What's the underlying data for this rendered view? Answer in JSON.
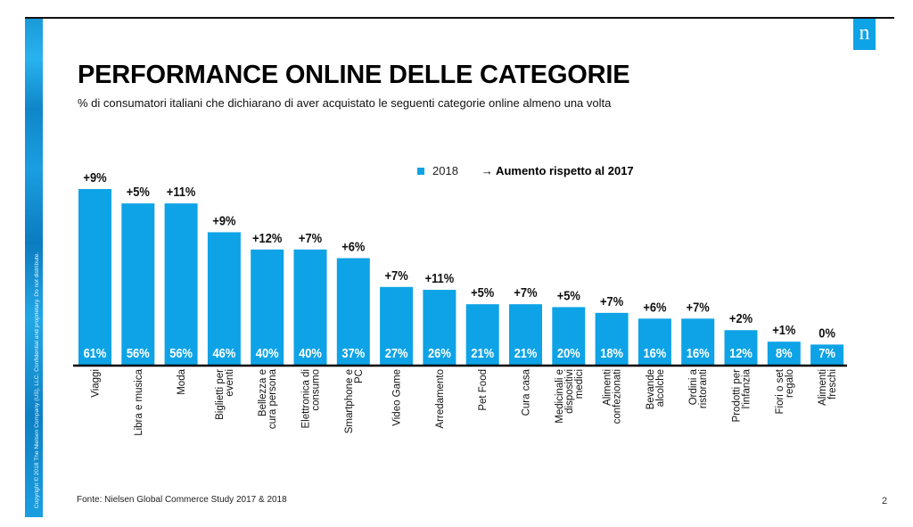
{
  "slide": {
    "title": "PERFORMANCE ONLINE DELLE CATEGORIE",
    "subtitle": "% di consumatori italiani che dichiarano di aver acquistato le seguenti categorie online almeno una volta",
    "logo_letter": "n",
    "side_copyright": "Copyright © 2018 The Nielsen Company (US), LLC. Confidential and proprietary. Do not distribute.",
    "source": "Fonte: Nielsen Global Commerce Study 2017 & 2018",
    "page_number": "2",
    "colors": {
      "bar": "#0ea3e6",
      "logo_bg": "#0ea3e6",
      "bar_label": "#ffffff"
    }
  },
  "legend": {
    "series_label": "2018",
    "note_label": "→ Aumento rispetto al 2017"
  },
  "chart_data": {
    "type": "bar",
    "title": "PERFORMANCE ONLINE DELLE CATEGORIE",
    "xlabel": "",
    "ylabel": "",
    "ylim": [
      0,
      65
    ],
    "grid": false,
    "legend_position": "top-center",
    "categories": [
      "Viaggi",
      "Libra e musica",
      "Moda",
      "Biglietti per eventi",
      "Bellezza e cura persona",
      "Elettronica di consumo",
      "Smartphone e PC",
      "Video Game",
      "Arredamento",
      "Pet Food",
      "Cura casa",
      "Medicinali e dispositivi medici",
      "Alimenti confezionati",
      "Bevande alcolche",
      "Ordini a ristoranti",
      "Prodotti per l'infanzia",
      "Fiori o set regalo",
      "Alimenti freschi"
    ],
    "category_lines": [
      [
        "Viaggi"
      ],
      [
        "Libra e musica"
      ],
      [
        "Moda"
      ],
      [
        "Biglietti per",
        "eventi"
      ],
      [
        "Bellezza e",
        "cura persona"
      ],
      [
        "Elettronica di",
        "consumo"
      ],
      [
        "Smartphone e",
        "PC"
      ],
      [
        "Video Game"
      ],
      [
        "Arredamento"
      ],
      [
        "Pet Food"
      ],
      [
        "Cura casa"
      ],
      [
        "Medicinali e",
        "dispositivi",
        "medici"
      ],
      [
        "Alimenti",
        "confezionati"
      ],
      [
        "Bevande",
        "alcolche"
      ],
      [
        "Ordini a",
        "ristoranti"
      ],
      [
        "Prodotti per",
        "l'infanzia"
      ],
      [
        "Fiori o set",
        "regalo"
      ],
      [
        "Alimenti",
        "freschi"
      ]
    ],
    "series": [
      {
        "name": "2018",
        "values": [
          61,
          56,
          56,
          46,
          40,
          40,
          37,
          27,
          26,
          21,
          21,
          20,
          18,
          16,
          16,
          12,
          8,
          7
        ],
        "value_labels": [
          "61%",
          "56%",
          "56%",
          "46%",
          "40%",
          "40%",
          "37%",
          "27%",
          "26%",
          "21%",
          "21%",
          "20%",
          "18%",
          "16%",
          "16%",
          "12%",
          "8%",
          "7%"
        ]
      },
      {
        "name": "Aumento rispetto al 2017",
        "values": [
          9,
          5,
          11,
          9,
          12,
          7,
          6,
          7,
          11,
          5,
          7,
          5,
          7,
          6,
          7,
          2,
          1,
          0
        ],
        "value_labels": [
          "+9%",
          "+5%",
          "+11%",
          "+9%",
          "+12%",
          "+7%",
          "+6%",
          "+7%",
          "+11%",
          "+5%",
          "+7%",
          "+5%",
          "+7%",
          "+6%",
          "+7%",
          "+2%",
          "+1%",
          "0%"
        ]
      }
    ]
  }
}
